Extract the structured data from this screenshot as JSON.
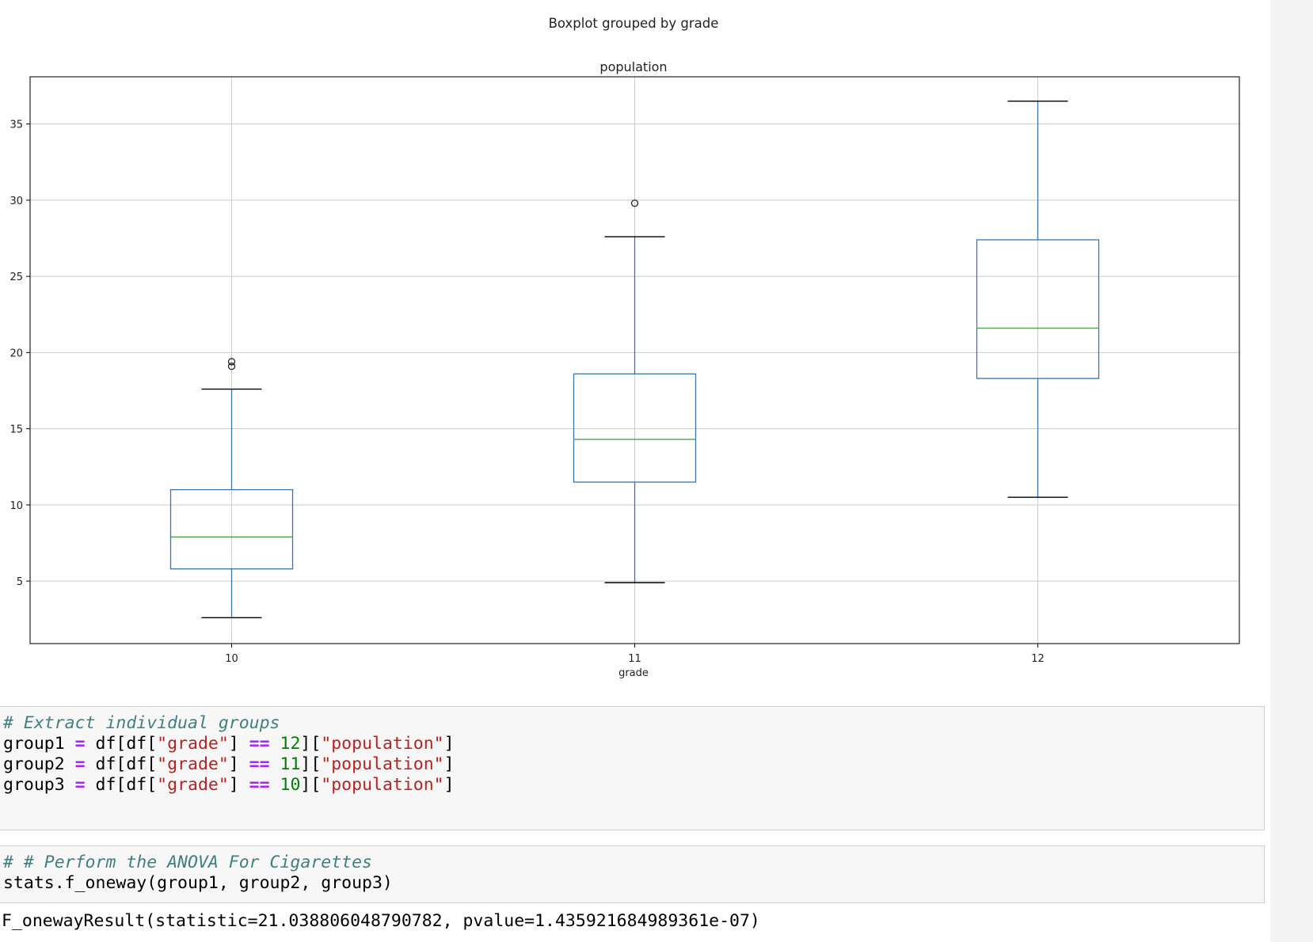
{
  "chart_data": {
    "type": "boxplot",
    "suptitle": "Boxplot grouped by grade",
    "title": "population",
    "xlabel": "grade",
    "ylabel": "",
    "categories": [
      "10",
      "11",
      "12"
    ],
    "ylim": [
      0.9,
      38.1
    ],
    "yticks": [
      5,
      10,
      15,
      20,
      25,
      30,
      35
    ],
    "grid": true,
    "boxes": [
      {
        "category": "10",
        "whisker_low": 2.6,
        "q1": 5.8,
        "median": 7.9,
        "q3": 11.0,
        "whisker_high": 17.6,
        "fliers": [
          19.1,
          19.4
        ]
      },
      {
        "category": "11",
        "whisker_low": 4.9,
        "q1": 11.5,
        "median": 14.3,
        "q3": 18.6,
        "whisker_high": 27.6,
        "fliers": [
          29.8
        ]
      },
      {
        "category": "12",
        "whisker_low": 10.5,
        "q1": 18.3,
        "median": 21.6,
        "q3": 27.4,
        "whisker_high": 36.5,
        "fliers": []
      }
    ],
    "colors": {
      "box": "#3b75af",
      "median": "#50a14f",
      "cap": "#000000",
      "grid": "#cccccc"
    }
  },
  "cells": [
    {
      "type": "code",
      "lines": [
        [
          {
            "t": "# Extract individual groups",
            "c": "comment"
          }
        ],
        [
          {
            "t": "group1 ",
            "c": ""
          },
          {
            "t": "=",
            "c": "op"
          },
          {
            "t": " df[df[",
            "c": ""
          },
          {
            "t": "\"grade\"",
            "c": "str"
          },
          {
            "t": "] ",
            "c": ""
          },
          {
            "t": "==",
            "c": "op"
          },
          {
            "t": " ",
            "c": ""
          },
          {
            "t": "12",
            "c": "num"
          },
          {
            "t": "][",
            "c": ""
          },
          {
            "t": "\"population\"",
            "c": "str"
          },
          {
            "t": "]",
            "c": ""
          }
        ],
        [
          {
            "t": "group2 ",
            "c": ""
          },
          {
            "t": "=",
            "c": "op"
          },
          {
            "t": " df[df[",
            "c": ""
          },
          {
            "t": "\"grade\"",
            "c": "str"
          },
          {
            "t": "] ",
            "c": ""
          },
          {
            "t": "==",
            "c": "op"
          },
          {
            "t": " ",
            "c": ""
          },
          {
            "t": "11",
            "c": "num"
          },
          {
            "t": "][",
            "c": ""
          },
          {
            "t": "\"population\"",
            "c": "str"
          },
          {
            "t": "]",
            "c": ""
          }
        ],
        [
          {
            "t": "group3 ",
            "c": ""
          },
          {
            "t": "=",
            "c": "op"
          },
          {
            "t": " df[df[",
            "c": ""
          },
          {
            "t": "\"grade\"",
            "c": "str"
          },
          {
            "t": "] ",
            "c": ""
          },
          {
            "t": "==",
            "c": "op"
          },
          {
            "t": " ",
            "c": ""
          },
          {
            "t": "10",
            "c": "num"
          },
          {
            "t": "][",
            "c": ""
          },
          {
            "t": "\"population\"",
            "c": "str"
          },
          {
            "t": "]",
            "c": ""
          }
        ]
      ]
    },
    {
      "type": "code",
      "lines": [
        [
          {
            "t": "# # Perform the ANOVA For Cigarettes",
            "c": "comment"
          }
        ],
        [
          {
            "t": "stats.f_oneway(group1, group2, group3)",
            "c": ""
          }
        ]
      ]
    }
  ],
  "output": "F_onewayResult(statistic=21.038806048790782, pvalue=1.435921684989361e-07)"
}
